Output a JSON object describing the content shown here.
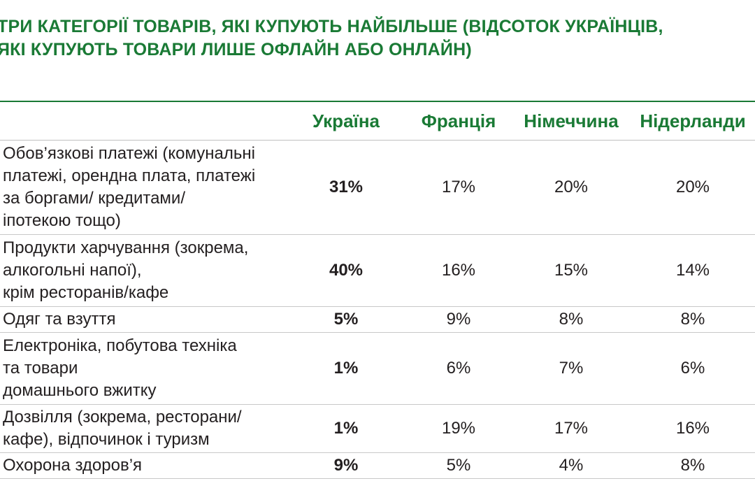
{
  "title": {
    "line1": "ТРИ КАТЕГОРІЇ ТОВАРІВ, ЯКІ КУПУЮТЬ НАЙБІЛЬШЕ (ВІДСОТОК УКРАЇНЦІВ,",
    "line2": "ЯКІ КУПУЮТЬ ТОВАРИ ЛИШЕ ОФЛАЙН АБО ОНЛАЙН)"
  },
  "colors": {
    "accent": "#1a7a35",
    "text": "#231f20",
    "rule": "#c8c8c8"
  },
  "table": {
    "headers": [
      "",
      "Україна",
      "Франція",
      "Німеччина",
      "Нідерланди"
    ],
    "rows": [
      {
        "label_lines": [
          "Обов’язкові платежі (комунальні",
          "платежі, орендна плата, платежі",
          "за боргами/ кредитами/",
          "іпотекою тощо)"
        ],
        "values": [
          "31%",
          "17%",
          "20%",
          "20%"
        ]
      },
      {
        "label_lines": [
          "Продукти харчування (зокрема,",
          "алкогольні напої),",
          "крім ресторанів/кафе"
        ],
        "values": [
          "40%",
          "16%",
          "15%",
          "14%"
        ]
      },
      {
        "label_lines": [
          "Одяг та взуття"
        ],
        "values": [
          "5%",
          "9%",
          "8%",
          "8%"
        ]
      },
      {
        "label_lines": [
          "Електроніка, побутова техніка",
          "та товари",
          "домашнього вжитку"
        ],
        "values": [
          "1%",
          "6%",
          "7%",
          "6%"
        ]
      },
      {
        "label_lines": [
          "Дозвілля (зокрема, ресторани/",
          "кафе), відпочинок і туризм"
        ],
        "values": [
          "1%",
          "19%",
          "17%",
          "16%"
        ]
      },
      {
        "label_lines": [
          "Охорона здоров’я"
        ],
        "values": [
          "9%",
          "5%",
          "4%",
          "8%"
        ]
      }
    ]
  }
}
